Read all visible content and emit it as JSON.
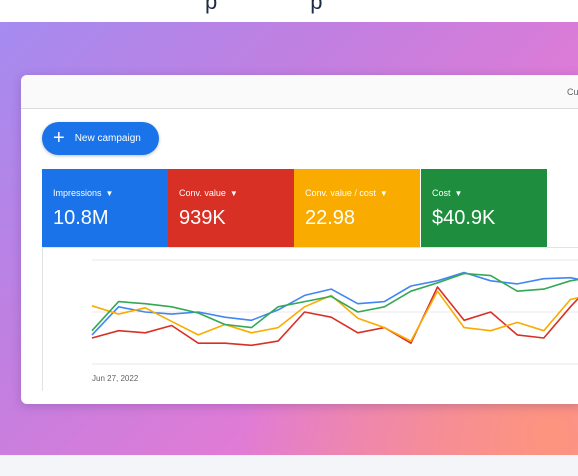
{
  "top": {
    "fragments": "p              p"
  },
  "header": {
    "right_label": "Cu"
  },
  "toolbar": {
    "new_campaign_plus": "+",
    "new_campaign_label": "New campaign"
  },
  "metrics": [
    {
      "label": "Impressions",
      "value": "10.8M",
      "color": "#1a73e8"
    },
    {
      "label": "Conv. value",
      "value": "939K",
      "color": "#d93025"
    },
    {
      "label": "Conv. value / cost",
      "value": "22.98",
      "color": "#f9ab00"
    },
    {
      "label": "Cost",
      "value": "$40.9K",
      "color": "#1e8e3e"
    }
  ],
  "chart": {
    "x_start_label": "Jun 27, 2022"
  },
  "chart_data": {
    "type": "line",
    "x_start_label": "Jun 27, 2022",
    "grid": true,
    "ylim": [
      0,
      100
    ],
    "series": [
      {
        "color": "#4285f4",
        "values": [
          28,
          55,
          50,
          48,
          50,
          45,
          42,
          52,
          66,
          72,
          58,
          60,
          75,
          80,
          88,
          80,
          77,
          82,
          83,
          78
        ]
      },
      {
        "color": "#d93025",
        "values": [
          25,
          32,
          30,
          37,
          20,
          20,
          18,
          22,
          50,
          45,
          30,
          35,
          20,
          74,
          42,
          50,
          28,
          25,
          55,
          82
        ]
      },
      {
        "color": "#f9ab00",
        "values": [
          56,
          48,
          54,
          41,
          28,
          38,
          30,
          35,
          55,
          66,
          44,
          35,
          22,
          70,
          35,
          32,
          40,
          32,
          62,
          68
        ]
      },
      {
        "color": "#34a853",
        "values": [
          32,
          60,
          58,
          55,
          49,
          38,
          35,
          55,
          60,
          65,
          50,
          55,
          70,
          78,
          87,
          85,
          70,
          72,
          80,
          84
        ]
      }
    ]
  }
}
